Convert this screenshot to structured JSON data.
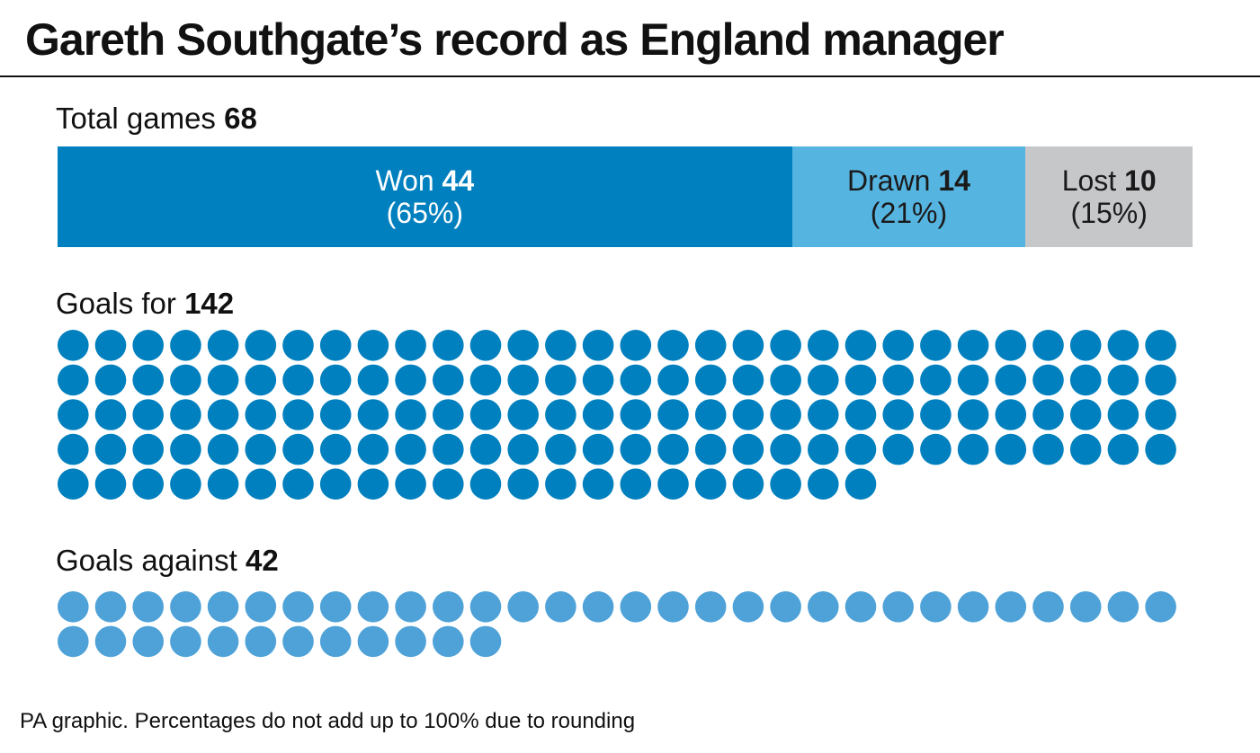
{
  "title": "Gareth Southgate’s record as England manager",
  "colors": {
    "won": "#0080be",
    "drawn": "#56b4e1",
    "lost": "#c6c7c9",
    "goals_for_dot": "#0080be",
    "goals_against_dot": "#4fa2d8",
    "won_text": "#ffffff",
    "dark_text": "#1a1a1a"
  },
  "footer": "PA graphic. Percentages do not add up to 100% due to rounding",
  "chart_data": [
    {
      "type": "bar",
      "orientation": "horizontal-stacked",
      "label": "Total games",
      "total": 68,
      "categories": [
        "Won",
        "Drawn",
        "Lost"
      ],
      "values": [
        44,
        14,
        10
      ],
      "percent_labels": [
        "(65%)",
        "(21%)",
        "(15%)"
      ]
    },
    {
      "type": "pictogram",
      "label": "Goals for",
      "value": 142,
      "icons_per_row": 30
    },
    {
      "type": "pictogram",
      "label": "Goals against",
      "value": 42,
      "icons_per_row": 30
    }
  ]
}
